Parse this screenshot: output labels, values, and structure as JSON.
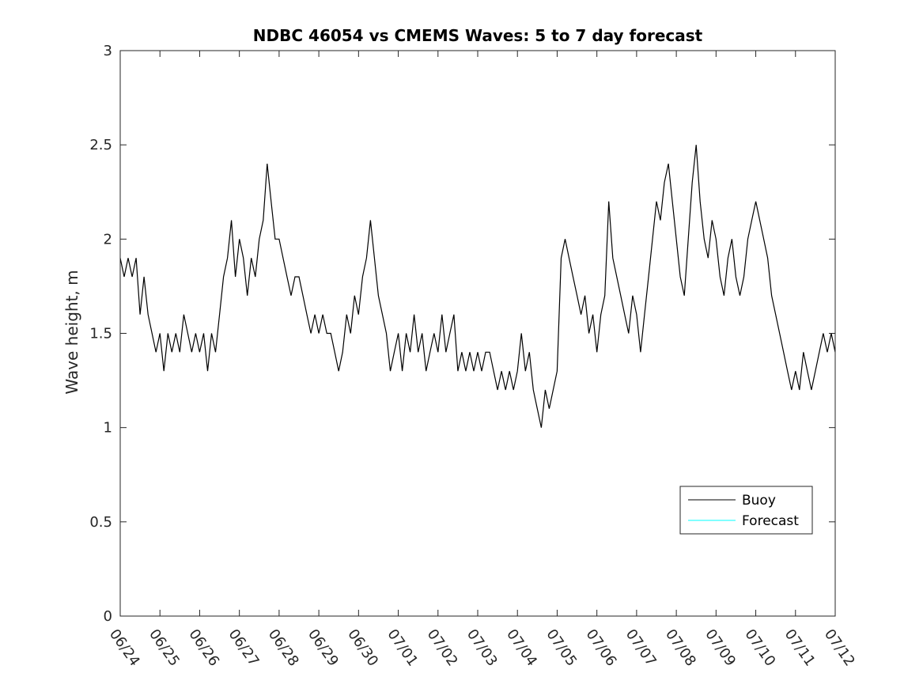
{
  "chart_data": {
    "type": "line",
    "title": "NDBC 46054 vs CMEMS Waves: 5 to 7 day forecast",
    "xlabel": "",
    "ylabel": "Wave height, m",
    "x_tick_labels": [
      "06/24",
      "06/25",
      "06/26",
      "06/27",
      "06/28",
      "06/29",
      "06/30",
      "07/01",
      "07/02",
      "07/03",
      "07/04",
      "07/05",
      "07/06",
      "07/07",
      "07/08",
      "07/09",
      "07/10",
      "07/11",
      "07/12"
    ],
    "xlim_days": [
      0,
      18
    ],
    "ylim": [
      0,
      3
    ],
    "y_ticks": [
      0,
      0.5,
      1,
      1.5,
      2,
      2.5,
      3
    ],
    "y_tick_labels": [
      "0",
      "0.5",
      "1",
      "1.5",
      "2",
      "2.5",
      "3"
    ],
    "grid": false,
    "legend": {
      "position": "bottom-right",
      "entries": [
        {
          "label": "Buoy",
          "color": "#000000"
        },
        {
          "label": "Forecast",
          "color": "#00ffff"
        }
      ]
    },
    "colors": {
      "buoy": "#000000",
      "forecast": "#00ffff",
      "marker": "#00ffff"
    },
    "series": [
      {
        "name": "Buoy",
        "points": [
          [
            0.0,
            1.9
          ],
          [
            0.1,
            1.8
          ],
          [
            0.2,
            1.9
          ],
          [
            0.3,
            1.8
          ],
          [
            0.4,
            1.9
          ],
          [
            0.5,
            1.6
          ],
          [
            0.6,
            1.8
          ],
          [
            0.7,
            1.6
          ],
          [
            0.8,
            1.5
          ],
          [
            0.9,
            1.4
          ],
          [
            1.0,
            1.5
          ],
          [
            1.1,
            1.3
          ],
          [
            1.2,
            1.5
          ],
          [
            1.3,
            1.4
          ],
          [
            1.4,
            1.5
          ],
          [
            1.5,
            1.4
          ],
          [
            1.6,
            1.6
          ],
          [
            1.7,
            1.5
          ],
          [
            1.8,
            1.4
          ],
          [
            1.9,
            1.5
          ],
          [
            2.0,
            1.4
          ],
          [
            2.1,
            1.5
          ],
          [
            2.2,
            1.3
          ],
          [
            2.3,
            1.5
          ],
          [
            2.4,
            1.4
          ],
          [
            2.5,
            1.6
          ],
          [
            2.6,
            1.8
          ],
          [
            2.7,
            1.9
          ],
          [
            2.8,
            2.1
          ],
          [
            2.9,
            1.8
          ],
          [
            3.0,
            2.0
          ],
          [
            3.1,
            1.9
          ],
          [
            3.2,
            1.7
          ],
          [
            3.3,
            1.9
          ],
          [
            3.4,
            1.8
          ],
          [
            3.5,
            2.0
          ],
          [
            3.6,
            2.1
          ],
          [
            3.7,
            2.4
          ],
          [
            3.8,
            2.2
          ],
          [
            3.9,
            2.0
          ],
          [
            4.0,
            2.0
          ],
          [
            4.1,
            1.9
          ],
          [
            4.2,
            1.8
          ],
          [
            4.3,
            1.7
          ],
          [
            4.4,
            1.8
          ],
          [
            4.5,
            1.8
          ],
          [
            4.6,
            1.7
          ],
          [
            4.7,
            1.6
          ],
          [
            4.8,
            1.5
          ],
          [
            4.9,
            1.6
          ],
          [
            5.0,
            1.5
          ],
          [
            5.1,
            1.6
          ],
          [
            5.2,
            1.5
          ],
          [
            5.3,
            1.5
          ],
          [
            5.4,
            1.4
          ],
          [
            5.5,
            1.3
          ],
          [
            5.6,
            1.4
          ],
          [
            5.7,
            1.6
          ],
          [
            5.8,
            1.5
          ],
          [
            5.9,
            1.7
          ],
          [
            6.0,
            1.6
          ],
          [
            6.1,
            1.8
          ],
          [
            6.2,
            1.9
          ],
          [
            6.3,
            2.1
          ],
          [
            6.4,
            1.9
          ],
          [
            6.5,
            1.7
          ],
          [
            6.6,
            1.6
          ],
          [
            6.7,
            1.5
          ],
          [
            6.8,
            1.3
          ],
          [
            6.9,
            1.4
          ],
          [
            7.0,
            1.5
          ],
          [
            7.1,
            1.3
          ],
          [
            7.2,
            1.5
          ],
          [
            7.3,
            1.4
          ],
          [
            7.4,
            1.6
          ],
          [
            7.5,
            1.4
          ],
          [
            7.6,
            1.5
          ],
          [
            7.7,
            1.3
          ],
          [
            7.8,
            1.4
          ],
          [
            7.9,
            1.5
          ],
          [
            8.0,
            1.4
          ],
          [
            8.1,
            1.6
          ],
          [
            8.2,
            1.4
          ],
          [
            8.3,
            1.5
          ],
          [
            8.4,
            1.6
          ],
          [
            8.5,
            1.3
          ],
          [
            8.6,
            1.4
          ],
          [
            8.7,
            1.3
          ],
          [
            8.8,
            1.4
          ],
          [
            8.9,
            1.3
          ],
          [
            9.0,
            1.4
          ],
          [
            9.1,
            1.3
          ],
          [
            9.2,
            1.4
          ],
          [
            9.3,
            1.4
          ],
          [
            9.4,
            1.3
          ],
          [
            9.5,
            1.2
          ],
          [
            9.6,
            1.3
          ],
          [
            9.7,
            1.2
          ],
          [
            9.8,
            1.3
          ],
          [
            9.9,
            1.2
          ],
          [
            10.0,
            1.3
          ],
          [
            10.1,
            1.5
          ],
          [
            10.2,
            1.3
          ],
          [
            10.3,
            1.4
          ],
          [
            10.4,
            1.2
          ],
          [
            10.5,
            1.1
          ],
          [
            10.6,
            1.0
          ],
          [
            10.7,
            1.2
          ],
          [
            10.8,
            1.1
          ],
          [
            10.9,
            1.2
          ],
          [
            11.0,
            1.3
          ],
          [
            11.1,
            1.9
          ],
          [
            11.2,
            2.0
          ],
          [
            11.3,
            1.9
          ],
          [
            11.4,
            1.8
          ],
          [
            11.5,
            1.7
          ],
          [
            11.6,
            1.6
          ],
          [
            11.7,
            1.7
          ],
          [
            11.8,
            1.5
          ],
          [
            11.9,
            1.6
          ],
          [
            12.0,
            1.4
          ],
          [
            12.1,
            1.6
          ],
          [
            12.2,
            1.7
          ],
          [
            12.3,
            2.2
          ],
          [
            12.4,
            1.9
          ],
          [
            12.5,
            1.8
          ],
          [
            12.6,
            1.7
          ],
          [
            12.7,
            1.6
          ],
          [
            12.8,
            1.5
          ],
          [
            12.9,
            1.7
          ],
          [
            13.0,
            1.6
          ],
          [
            13.1,
            1.4
          ],
          [
            13.2,
            1.6
          ],
          [
            13.3,
            1.8
          ],
          [
            13.4,
            2.0
          ],
          [
            13.5,
            2.2
          ],
          [
            13.6,
            2.1
          ],
          [
            13.7,
            2.3
          ],
          [
            13.8,
            2.4
          ],
          [
            13.9,
            2.2
          ],
          [
            14.0,
            2.0
          ],
          [
            14.1,
            1.8
          ],
          [
            14.2,
            1.7
          ],
          [
            14.3,
            2.0
          ],
          [
            14.4,
            2.3
          ],
          [
            14.5,
            2.5
          ],
          [
            14.6,
            2.2
          ],
          [
            14.7,
            2.0
          ],
          [
            14.8,
            1.9
          ],
          [
            14.9,
            2.1
          ],
          [
            15.0,
            2.0
          ],
          [
            15.1,
            1.8
          ],
          [
            15.2,
            1.7
          ],
          [
            15.3,
            1.9
          ],
          [
            15.4,
            2.0
          ],
          [
            15.5,
            1.8
          ],
          [
            15.6,
            1.7
          ],
          [
            15.7,
            1.8
          ],
          [
            15.8,
            2.0
          ],
          [
            15.9,
            2.1
          ],
          [
            16.0,
            2.2
          ],
          [
            16.1,
            2.1
          ],
          [
            16.2,
            2.0
          ],
          [
            16.3,
            1.9
          ],
          [
            16.4,
            1.7
          ],
          [
            16.5,
            1.6
          ],
          [
            16.6,
            1.5
          ],
          [
            16.7,
            1.4
          ],
          [
            16.8,
            1.3
          ],
          [
            16.9,
            1.2
          ],
          [
            17.0,
            1.3
          ],
          [
            17.1,
            1.2
          ],
          [
            17.2,
            1.4
          ],
          [
            17.3,
            1.3
          ],
          [
            17.4,
            1.2
          ],
          [
            17.5,
            1.3
          ],
          [
            17.6,
            1.4
          ],
          [
            17.7,
            1.5
          ],
          [
            17.8,
            1.4
          ],
          [
            17.9,
            1.5
          ],
          [
            18.0,
            1.4
          ]
        ]
      }
    ]
  }
}
